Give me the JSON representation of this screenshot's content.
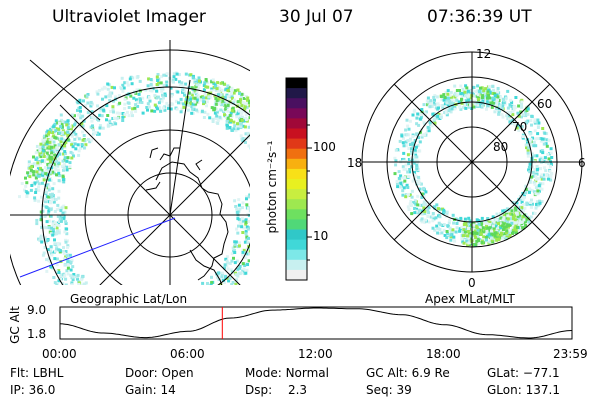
{
  "header": {
    "title": "Ultraviolet Imager",
    "date": "30 Jul 07",
    "time": "07:36:39 UT"
  },
  "colorbar": {
    "unit_label": "photon cm⁻²s⁻¹",
    "ticks": [
      {
        "label": "100",
        "value": 100
      },
      {
        "label": "10",
        "value": 10
      }
    ],
    "colors": [
      "#f0f0f0",
      "#c8f0f0",
      "#7de8e8",
      "#40d8d8",
      "#30c8c8",
      "#50d878",
      "#6ee060",
      "#9ee850",
      "#c8ee40",
      "#e8f020",
      "#f8e018",
      "#f8b010",
      "#f07010",
      "#e03818",
      "#c81020",
      "#a00838",
      "#780858",
      "#4a1060",
      "#201848",
      "#000000"
    ]
  },
  "geographic_panel": {
    "label": "Geographic Lat/Lon"
  },
  "apex_panel": {
    "label": "Apex MLat/MLT",
    "mlt_labels": {
      "top": "12",
      "bottom": "0",
      "left": "18",
      "right": "6"
    },
    "lat_labels": [
      "60",
      "70",
      "80"
    ]
  },
  "timeline": {
    "y_label": "GC Alt",
    "y_ticks": [
      "9.0",
      "1.8"
    ],
    "x_ticks": [
      "00:00",
      "06:00",
      "12:00",
      "18:00",
      "23:59"
    ],
    "current_time_hours": 7.61
  },
  "info": {
    "filter_label": "Flt:",
    "filter": "LBHL",
    "ip_label": "IP:",
    "ip": "36.0",
    "door_label": "Door:",
    "door": "Open",
    "gain_label": "Gain:",
    "gain": "14",
    "mode_label": "Mode:",
    "mode": "Normal",
    "dsp_label": "Dsp:",
    "dsp": "2.3",
    "gcalt_label": "GC Alt:",
    "gcalt": "6.9 Re",
    "seq_label": "Seq:",
    "seq": "39",
    "glat_label": "GLat:",
    "glat": "−77.1",
    "glon_label": "GLon:",
    "glon": "137.1"
  },
  "colors": {
    "auroral_green": "#5ed85a",
    "auroral_cyan": "#40d8d8",
    "marker_red": "#ff0000",
    "track_blue": "#2020ff"
  }
}
